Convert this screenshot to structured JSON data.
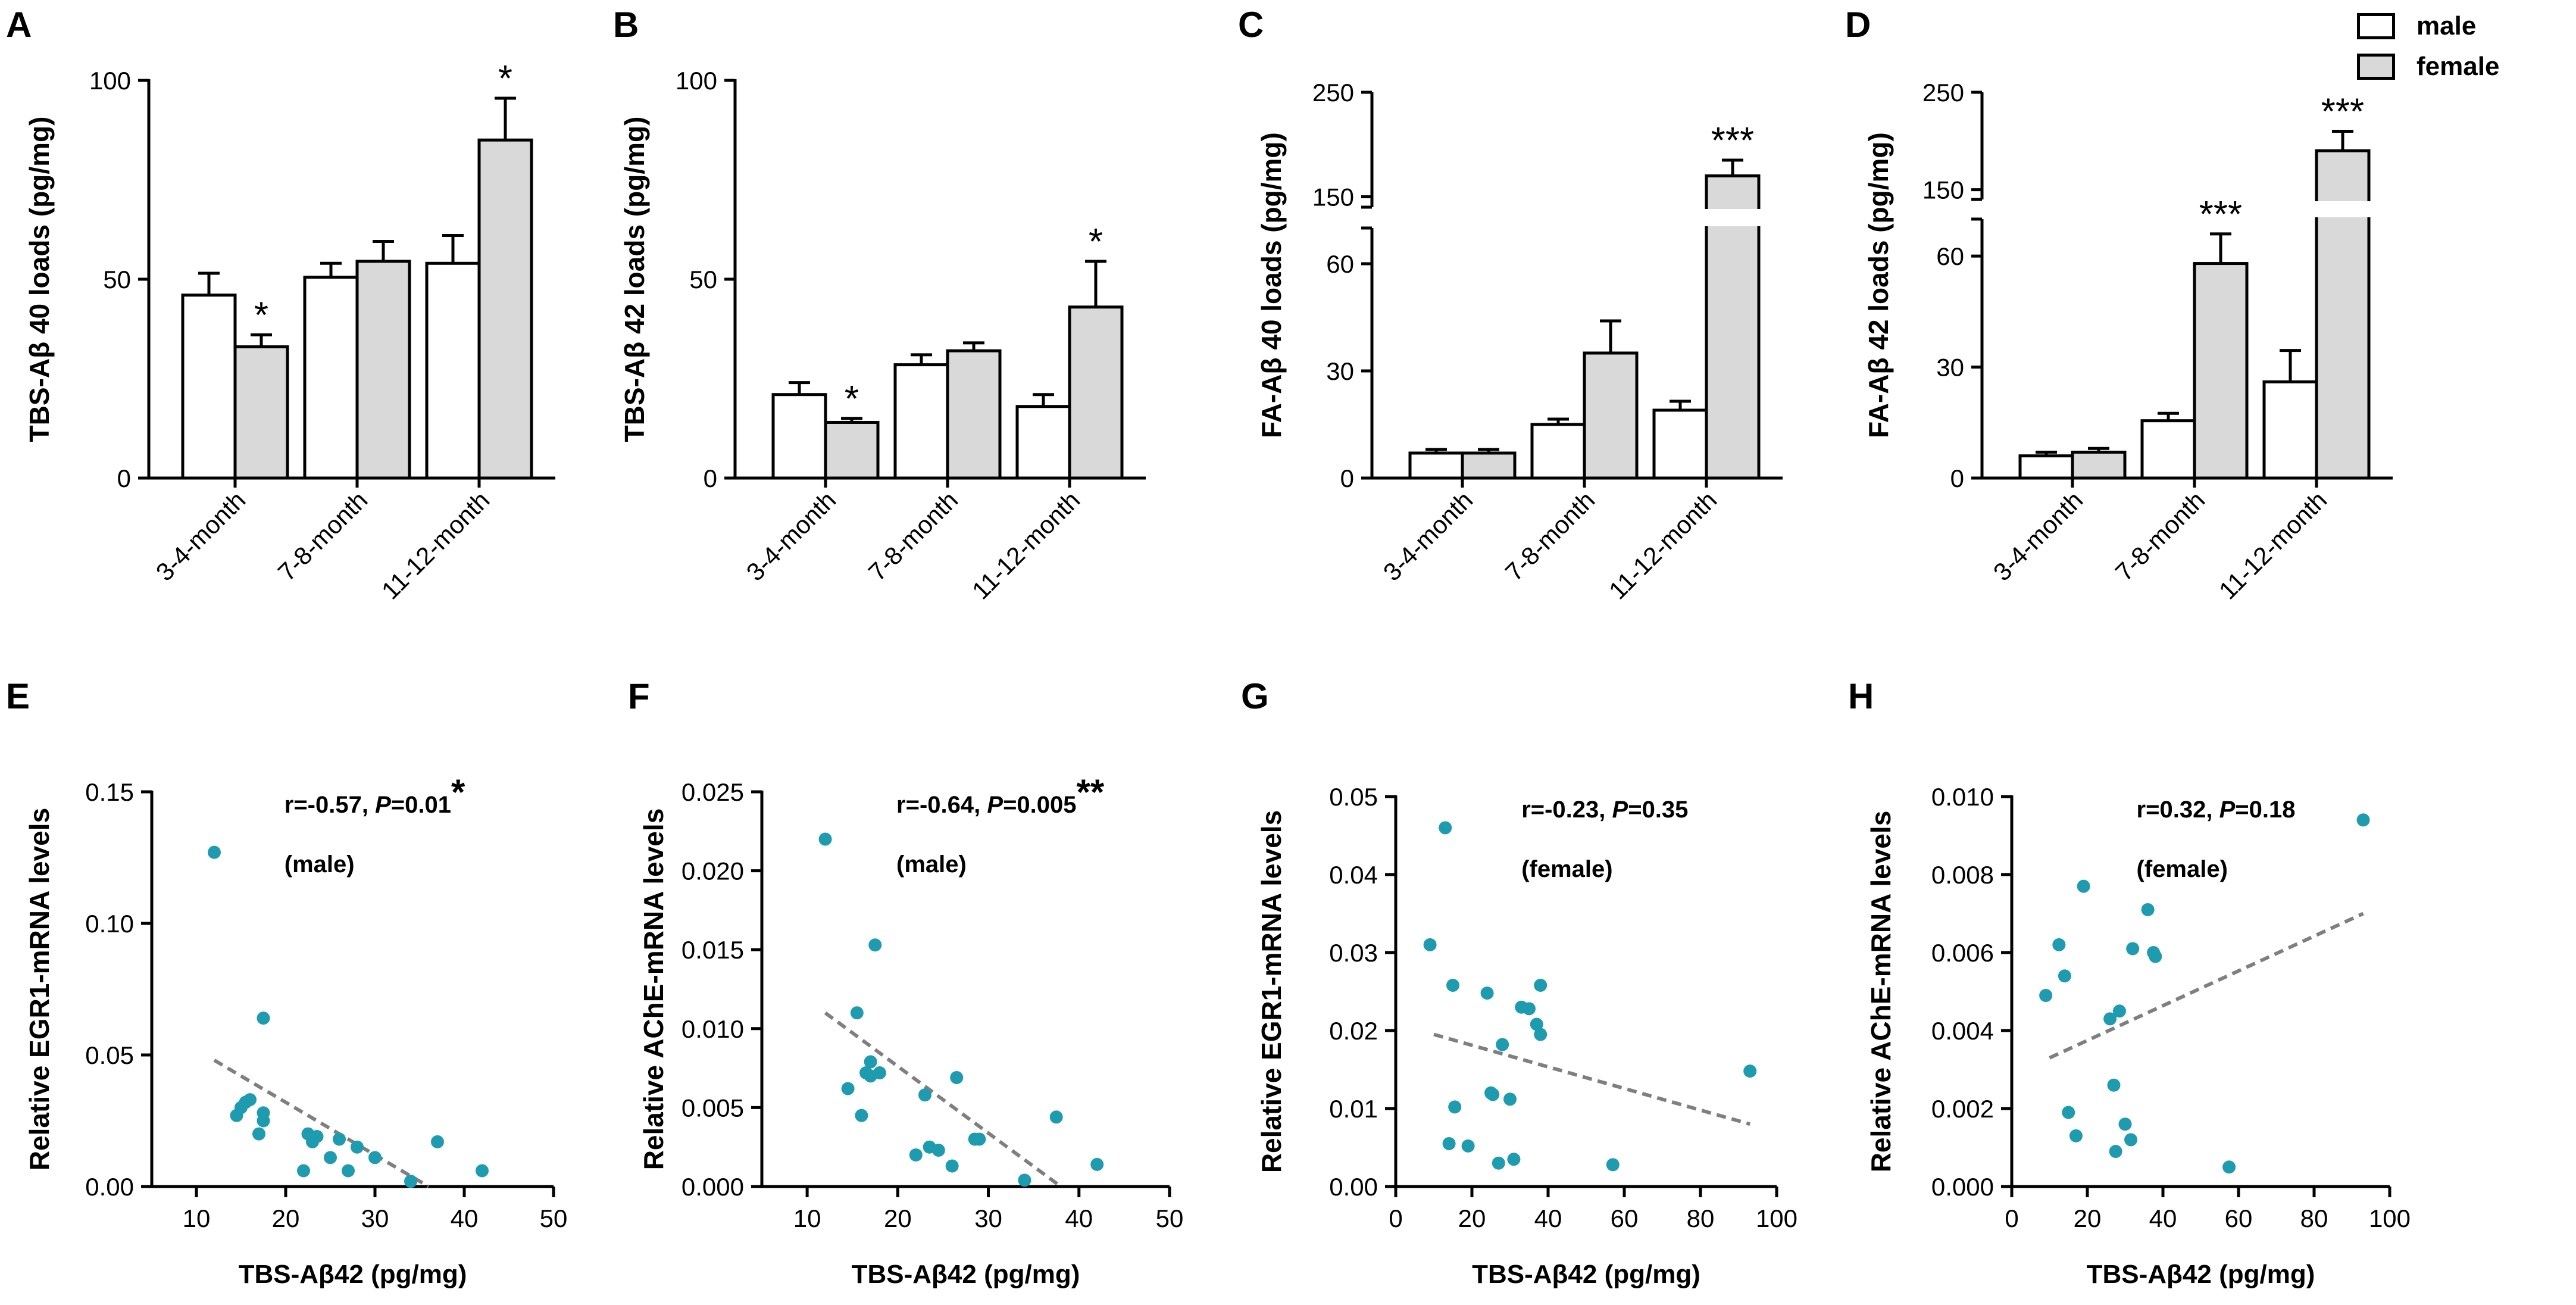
{
  "colors": {
    "male": "#ffffff",
    "female": "#d9d9d9",
    "axis": "#000000",
    "dot": "#1f9bb0",
    "fit": "#7f7f7f"
  },
  "legend": {
    "male": "male",
    "female": "female"
  },
  "chart_data": [
    {
      "id": "A",
      "type": "bar",
      "panel_label": "A",
      "ylabel": "TBS-Aβ 40 loads (pg/mg)",
      "categories": [
        "3-4-month",
        "7-8-month",
        "11-12-month"
      ],
      "ylim": [
        0,
        100
      ],
      "yticks": [
        0,
        50,
        100
      ],
      "series": [
        {
          "name": "male",
          "values": [
            46,
            50.5,
            54
          ],
          "errors": [
            5.5,
            3.5,
            7
          ],
          "sig": [
            "",
            "",
            ""
          ]
        },
        {
          "name": "female",
          "values": [
            33,
            54.5,
            85
          ],
          "errors": [
            3,
            5,
            10.5
          ],
          "sig": [
            "*",
            "",
            "*"
          ]
        }
      ]
    },
    {
      "id": "B",
      "type": "bar",
      "panel_label": "B",
      "ylabel": "TBS-Aβ 42 loads (pg/mg)",
      "categories": [
        "3-4-month",
        "7-8-month",
        "11-12-month"
      ],
      "ylim": [
        0,
        100
      ],
      "yticks": [
        0,
        50,
        100
      ],
      "series": [
        {
          "name": "male",
          "values": [
            21,
            28.5,
            18
          ],
          "errors": [
            3,
            2.5,
            3
          ],
          "sig": [
            "",
            "",
            ""
          ]
        },
        {
          "name": "female",
          "values": [
            14,
            32,
            43
          ],
          "errors": [
            1,
            2,
            11.5
          ],
          "sig": [
            "*",
            "",
            "*"
          ]
        }
      ]
    },
    {
      "id": "C",
      "type": "bar",
      "panel_label": "C",
      "ylabel": "FA-Aβ 40 loads (pg/mg)",
      "categories": [
        "3-4-month",
        "7-8-month",
        "11-12-month"
      ],
      "broken_axis": {
        "lower": [
          0,
          70
        ],
        "upper": [
          140,
          250
        ]
      },
      "yticks_lower": [
        0,
        30,
        60
      ],
      "yticks_upper": [
        150,
        250
      ],
      "series": [
        {
          "name": "male",
          "values": [
            7,
            15,
            19
          ],
          "errors": [
            1,
            1.5,
            2.5
          ],
          "sig": [
            "",
            "",
            ""
          ]
        },
        {
          "name": "female",
          "values": [
            7,
            35,
            170
          ],
          "errors": [
            1,
            9,
            15
          ],
          "sig": [
            "",
            "",
            "***"
          ]
        }
      ]
    },
    {
      "id": "D",
      "type": "bar",
      "panel_label": "D",
      "ylabel": "FA-Aβ 42 loads (pg/mg)",
      "categories": [
        "3-4-month",
        "7-8-month",
        "11-12-month"
      ],
      "broken_axis": {
        "lower": [
          0,
          70
        ],
        "upper": [
          140,
          250
        ]
      },
      "yticks_lower": [
        0,
        30,
        60
      ],
      "yticks_upper": [
        150,
        250
      ],
      "series": [
        {
          "name": "male",
          "values": [
            6,
            15.5,
            26
          ],
          "errors": [
            1,
            2,
            8.5
          ],
          "sig": [
            "",
            "",
            ""
          ]
        },
        {
          "name": "female",
          "values": [
            7,
            58,
            190
          ],
          "errors": [
            1,
            8,
            20
          ],
          "sig": [
            "",
            "***",
            "***"
          ]
        }
      ]
    },
    {
      "id": "E",
      "type": "scatter",
      "panel_label": "E",
      "ylabel": "Relative EGR1-mRNA levels",
      "xlabel": "TBS-Aβ42 (pg/mg)",
      "xlim": [
        5,
        50
      ],
      "xticks": [
        10,
        20,
        30,
        40,
        50
      ],
      "ylim": [
        0,
        0.15
      ],
      "yticks": [
        "0.00",
        "0.05",
        "0.10",
        "0.15"
      ],
      "stat": "r=-0.57, ",
      "p_label": "P",
      "p_value": "=0.01",
      "sig": "*",
      "group": "(male)",
      "fit": {
        "x": [
          12,
          36
        ],
        "y": [
          0.048,
          0.0
        ]
      },
      "x": [
        12,
        14.5,
        15,
        15.5,
        16,
        17,
        17.5,
        17.5,
        17.5,
        22,
        22.5,
        23,
        23.5,
        25,
        26,
        27,
        28,
        30,
        34,
        37,
        42
      ],
      "y": [
        0.127,
        0.027,
        0.03,
        0.032,
        0.033,
        0.02,
        0.025,
        0.028,
        0.064,
        0.006,
        0.02,
        0.017,
        0.019,
        0.011,
        0.018,
        0.006,
        0.015,
        0.011,
        0.002,
        0.017,
        0.006
      ]
    },
    {
      "id": "F",
      "type": "scatter",
      "panel_label": "F",
      "ylabel": "Relative AChE-mRNA levels",
      "xlabel": "TBS-Aβ42 (pg/mg)",
      "xlim": [
        5,
        50
      ],
      "xticks": [
        10,
        20,
        30,
        40,
        50
      ],
      "ylim": [
        0,
        0.025
      ],
      "yticks": [
        "0.000",
        "0.005",
        "0.010",
        "0.015",
        "0.020",
        "0.025"
      ],
      "stat": "r=-0.64, ",
      "p_label": "P",
      "p_value": "=0.005",
      "sig": "**",
      "group": "(male)",
      "fit": {
        "x": [
          12,
          38
        ],
        "y": [
          0.011,
          0.0
        ]
      },
      "x": [
        12,
        14.5,
        15.5,
        16,
        16.5,
        17,
        17,
        17.5,
        18,
        22,
        23,
        23.5,
        24.5,
        26,
        26.5,
        28.5,
        29,
        34,
        37.5,
        42
      ],
      "y": [
        0.022,
        0.0062,
        0.011,
        0.0045,
        0.0072,
        0.007,
        0.0079,
        0.0153,
        0.0072,
        0.002,
        0.0058,
        0.0025,
        0.0023,
        0.0013,
        0.0069,
        0.003,
        0.003,
        0.0004,
        0.0044,
        0.0014
      ]
    },
    {
      "id": "G",
      "type": "scatter",
      "panel_label": "G",
      "ylabel": "Relative EGR1-mRNA levels",
      "xlabel": "TBS-Aβ42 (pg/mg)",
      "xlim": [
        0,
        100
      ],
      "xticks": [
        0,
        20,
        40,
        60,
        80,
        100
      ],
      "ylim": [
        0,
        0.05
      ],
      "yticks": [
        "0.00",
        "0.01",
        "0.02",
        "0.03",
        "0.04",
        "0.05"
      ],
      "stat": "r=-0.23, ",
      "p_label": "P",
      "p_value": "=0.35",
      "sig": "",
      "group": "(female)",
      "fit": {
        "x": [
          10,
          93
        ],
        "y": [
          0.0195,
          0.008
        ]
      },
      "x": [
        9,
        13,
        14,
        15,
        15.5,
        19,
        24,
        25,
        25.5,
        27,
        28,
        30,
        31,
        33,
        35,
        37,
        38,
        38,
        57,
        93
      ],
      "y": [
        0.031,
        0.046,
        0.0055,
        0.0258,
        0.0102,
        0.0052,
        0.0248,
        0.012,
        0.0118,
        0.003,
        0.0182,
        0.0112,
        0.0035,
        0.023,
        0.0228,
        0.0208,
        0.0195,
        0.0258,
        0.0028,
        0.0148
      ]
    },
    {
      "id": "H",
      "type": "scatter",
      "panel_label": "H",
      "ylabel": "Relative AChE-mRNA levels",
      "xlabel": "TBS-Aβ42 (pg/mg)",
      "xlim": [
        0,
        100
      ],
      "xticks": [
        0,
        20,
        40,
        60,
        80,
        100
      ],
      "ylim": [
        0,
        0.01
      ],
      "yticks": [
        "0.000",
        "0.002",
        "0.004",
        "0.006",
        "0.008",
        "0.010"
      ],
      "stat": "r=0.32, ",
      "p_label": "P",
      "p_value": "=0.18",
      "sig": "",
      "group": "(female)",
      "fit": {
        "x": [
          10,
          93
        ],
        "y": [
          0.0033,
          0.007
        ]
      },
      "x": [
        9,
        12.5,
        14,
        15,
        17,
        19,
        26,
        27,
        27.5,
        28.5,
        30,
        31.5,
        32,
        36,
        37.5,
        38,
        57.5,
        93
      ],
      "y": [
        0.0049,
        0.0062,
        0.0054,
        0.0019,
        0.0013,
        0.0077,
        0.0043,
        0.0026,
        0.0009,
        0.0045,
        0.0016,
        0.0012,
        0.0061,
        0.0071,
        0.006,
        0.0059,
        0.0005,
        0.0094
      ]
    }
  ]
}
